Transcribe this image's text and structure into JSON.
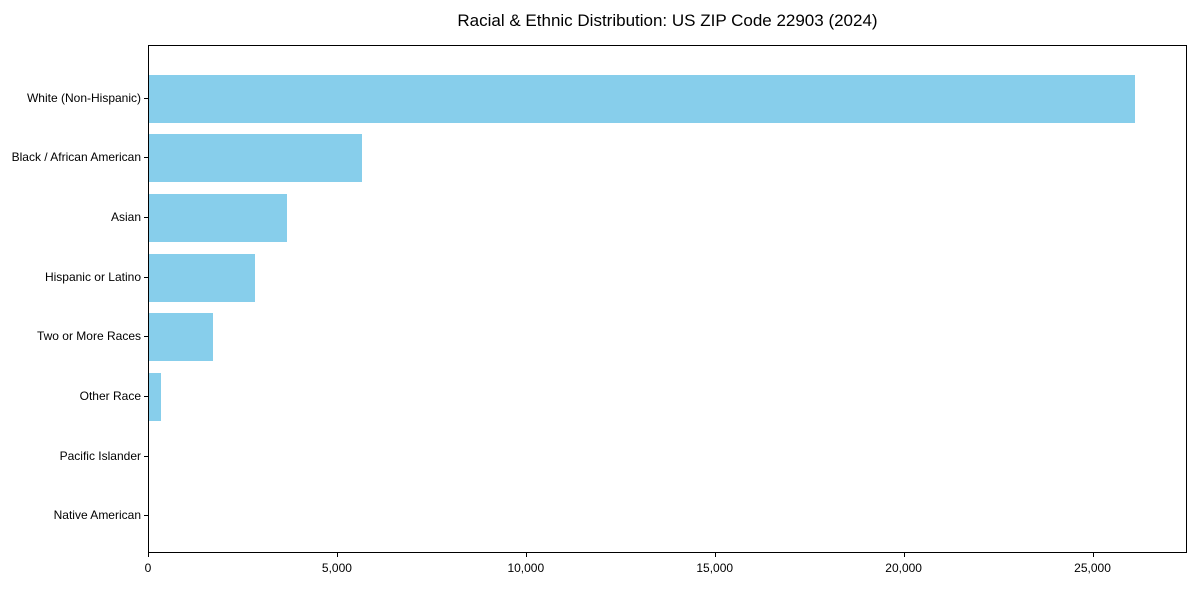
{
  "figure": {
    "background": "#ffffff"
  },
  "chart_data": {
    "type": "bar",
    "orientation": "horizontal",
    "title": "Racial & Ethnic Distribution: US ZIP Code 22903 (2024)",
    "categories": [
      "White (Non-Hispanic)",
      "Black / African American",
      "Asian",
      "Hispanic or Latino",
      "Two or More Races",
      "Other Race",
      "Pacific Islander",
      "Native American"
    ],
    "values": [
      26100,
      5650,
      3650,
      2800,
      1700,
      320,
      0,
      0
    ],
    "xlabel": "",
    "ylabel": "",
    "xlim": [
      0,
      27500
    ],
    "xticks": [
      0,
      5000,
      10000,
      15000,
      20000,
      25000
    ],
    "xtick_labels": [
      "0",
      "5,000",
      "10,000",
      "15,000",
      "20,000",
      "25,000"
    ],
    "grid": false,
    "legend": null,
    "bar_color": "#87ceeb",
    "axis_color": "#000000",
    "text_color": "#000000"
  }
}
